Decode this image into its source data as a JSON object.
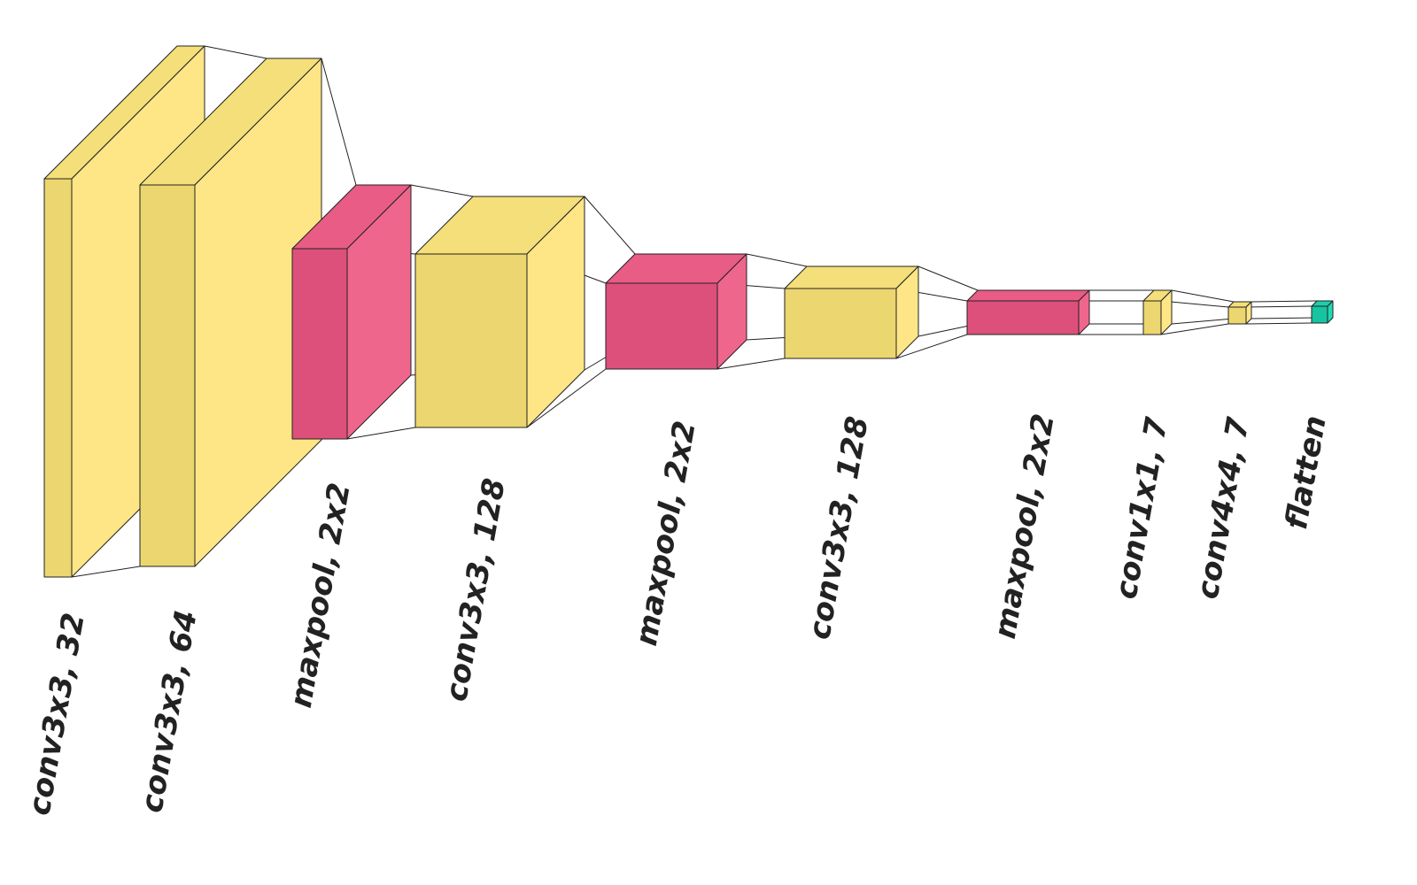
{
  "layers": [
    {
      "label": "conv3x3, 32"
    },
    {
      "label": "conv3x3, 64"
    },
    {
      "label": "maxpool, 2x2"
    },
    {
      "label": "conv3x3, 128"
    },
    {
      "label": "maxpool, 2x2"
    },
    {
      "label": "conv3x3, 128"
    },
    {
      "label": "maxpool, 2x2"
    },
    {
      "label": "conv1x1, 7"
    },
    {
      "label": "conv4x4, 7"
    },
    {
      "label": "flatten"
    }
  ]
}
